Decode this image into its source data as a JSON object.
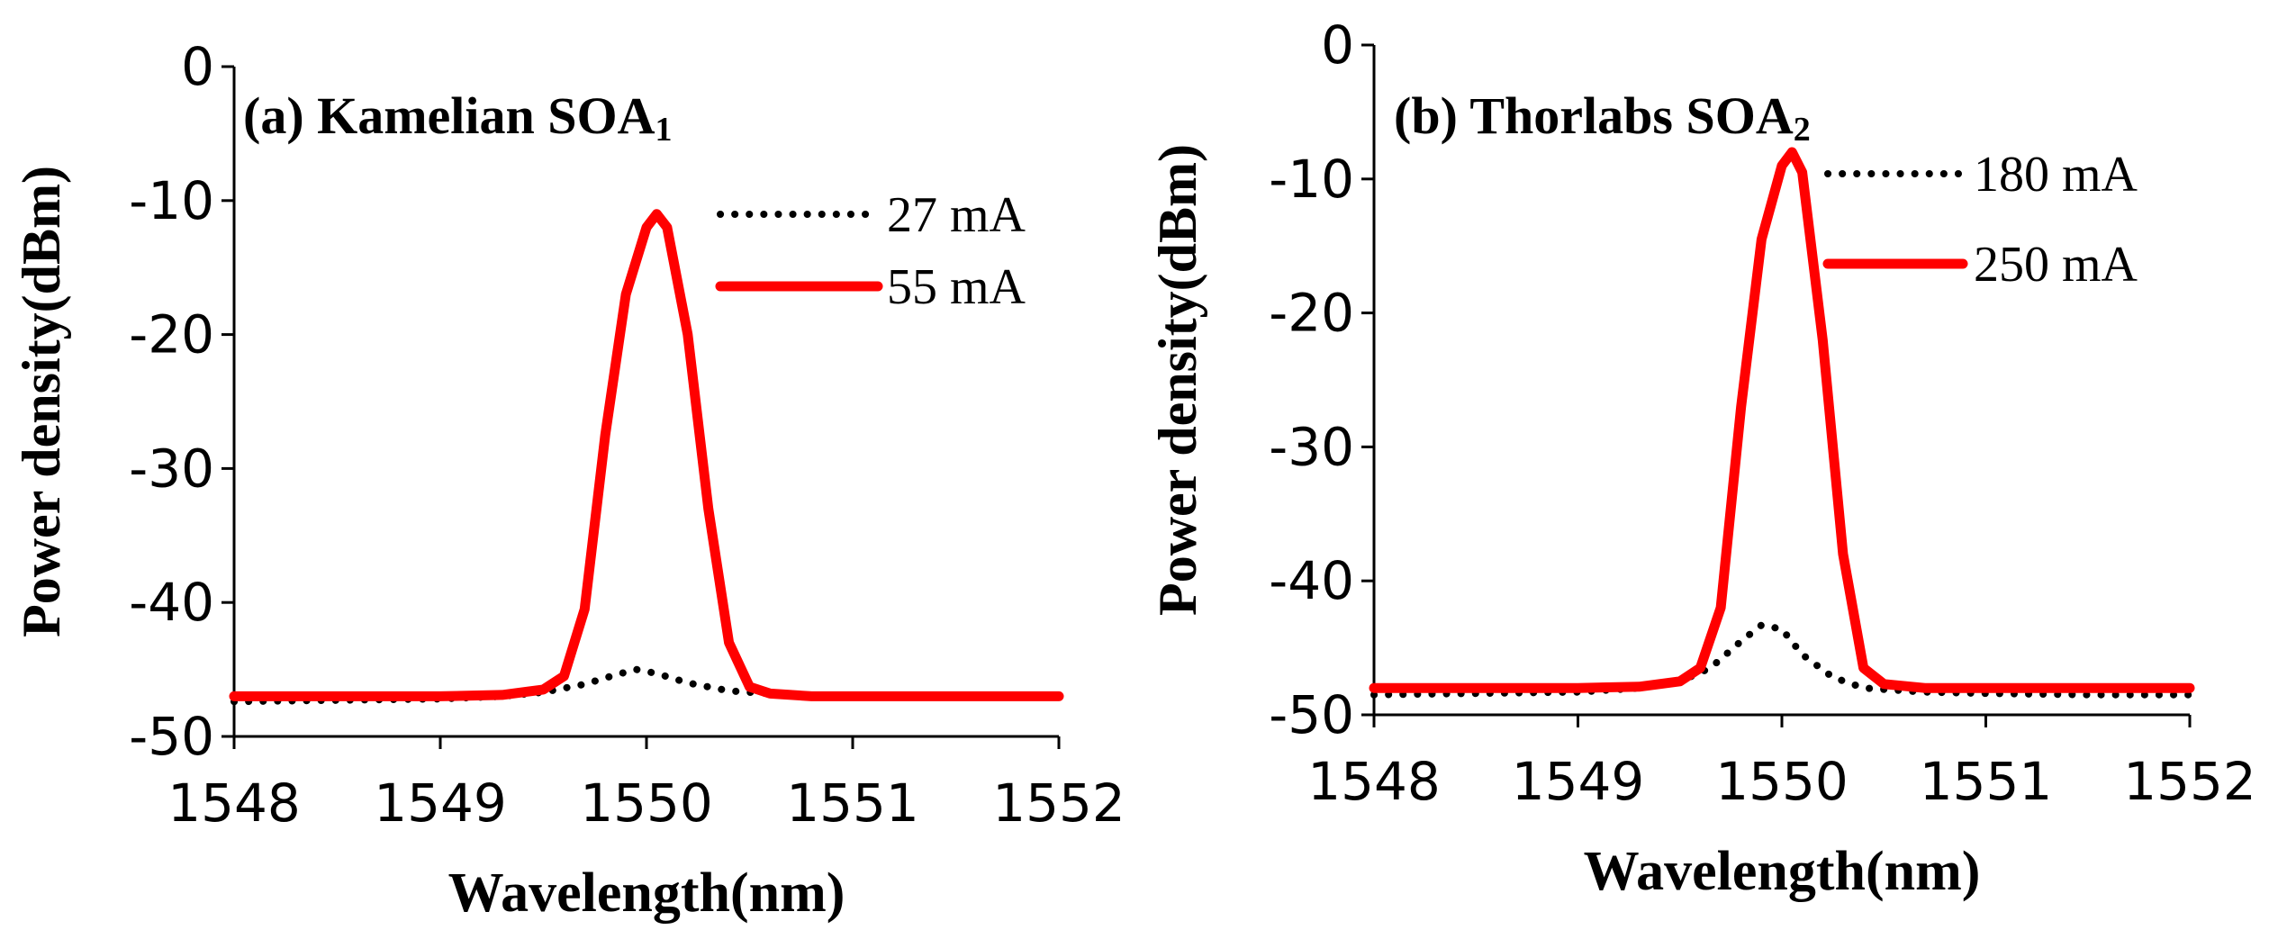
{
  "chart_data": [
    {
      "type": "line",
      "title": "(a) Kamelian  SOA",
      "title_subscript": "1",
      "xlabel": "Wavelength(nm)",
      "ylabel": "Power density(dBm)",
      "xlim": [
        1548,
        1552
      ],
      "ylim": [
        -50,
        0
      ],
      "x_ticks": [
        "1548",
        "1549",
        "1550",
        "1551",
        "1552"
      ],
      "y_ticks": [
        "0",
        "-10",
        "-20",
        "-30",
        "-40",
        "-50"
      ],
      "grid": false,
      "legend_position": "top-right",
      "series": [
        {
          "name": "27 mA",
          "color": "#000000",
          "style": "dotted",
          "x": [
            1548.0,
            1548.5,
            1549.0,
            1549.3,
            1549.5,
            1549.7,
            1549.85,
            1549.95,
            1550.05,
            1550.2,
            1550.4,
            1550.7,
            1551.0,
            1551.5,
            1552.0
          ],
          "y": [
            -47.4,
            -47.3,
            -47.2,
            -47.0,
            -46.7,
            -46.1,
            -45.4,
            -45.0,
            -45.3,
            -46.0,
            -46.6,
            -46.9,
            -47.0,
            -47.0,
            -47.0
          ]
        },
        {
          "name": "55 mA",
          "color": "#ff0000",
          "style": "solid",
          "x": [
            1548.0,
            1548.5,
            1549.0,
            1549.3,
            1549.5,
            1549.6,
            1549.7,
            1549.8,
            1549.9,
            1550.0,
            1550.05,
            1550.1,
            1550.2,
            1550.3,
            1550.4,
            1550.5,
            1550.6,
            1550.8,
            1551.0,
            1551.5,
            1552.0
          ],
          "y": [
            -47.0,
            -47.0,
            -47.0,
            -46.9,
            -46.5,
            -45.5,
            -40.5,
            -27.5,
            -17.0,
            -12.0,
            -11.0,
            -12.0,
            -20.0,
            -33.0,
            -43.0,
            -46.3,
            -46.8,
            -47.0,
            -47.0,
            -47.0,
            -47.0
          ]
        }
      ]
    },
    {
      "type": "line",
      "title": "(b) Thorlabs  SOA",
      "title_subscript": "2",
      "xlabel": "Wavelength(nm)",
      "ylabel": "Power density(dBm)",
      "xlim": [
        1548,
        1552
      ],
      "ylim": [
        -50,
        0
      ],
      "x_ticks": [
        "1548",
        "1549",
        "1550",
        "1551",
        "1552"
      ],
      "y_ticks": [
        "0",
        "-10",
        "-20",
        "-30",
        "-40",
        "-50"
      ],
      "grid": false,
      "legend_position": "top-right",
      "series": [
        {
          "name": "180 mA",
          "color": "#000000",
          "style": "dotted",
          "x": [
            1548.0,
            1548.5,
            1549.0,
            1549.3,
            1549.5,
            1549.65,
            1549.8,
            1549.9,
            1550.0,
            1550.1,
            1550.25,
            1550.4,
            1550.7,
            1551.0,
            1551.5,
            1552.0
          ],
          "y": [
            -48.5,
            -48.4,
            -48.3,
            -48.0,
            -47.5,
            -46.5,
            -44.5,
            -43.3,
            -43.6,
            -45.5,
            -47.2,
            -48.0,
            -48.3,
            -48.4,
            -48.5,
            -48.5
          ]
        },
        {
          "name": "250 mA",
          "color": "#ff0000",
          "style": "solid",
          "x": [
            1548.0,
            1548.5,
            1549.0,
            1549.3,
            1549.5,
            1549.6,
            1549.7,
            1549.8,
            1549.9,
            1550.0,
            1550.05,
            1550.1,
            1550.2,
            1550.3,
            1550.4,
            1550.5,
            1550.7,
            1551.0,
            1551.5,
            1552.0
          ],
          "y": [
            -48.0,
            -48.0,
            -48.0,
            -47.9,
            -47.5,
            -46.5,
            -42.0,
            -27.0,
            -14.5,
            -9.0,
            -8.0,
            -9.5,
            -22.0,
            -38.0,
            -46.5,
            -47.7,
            -48.0,
            -48.0,
            -48.0,
            -48.0
          ]
        }
      ]
    }
  ]
}
